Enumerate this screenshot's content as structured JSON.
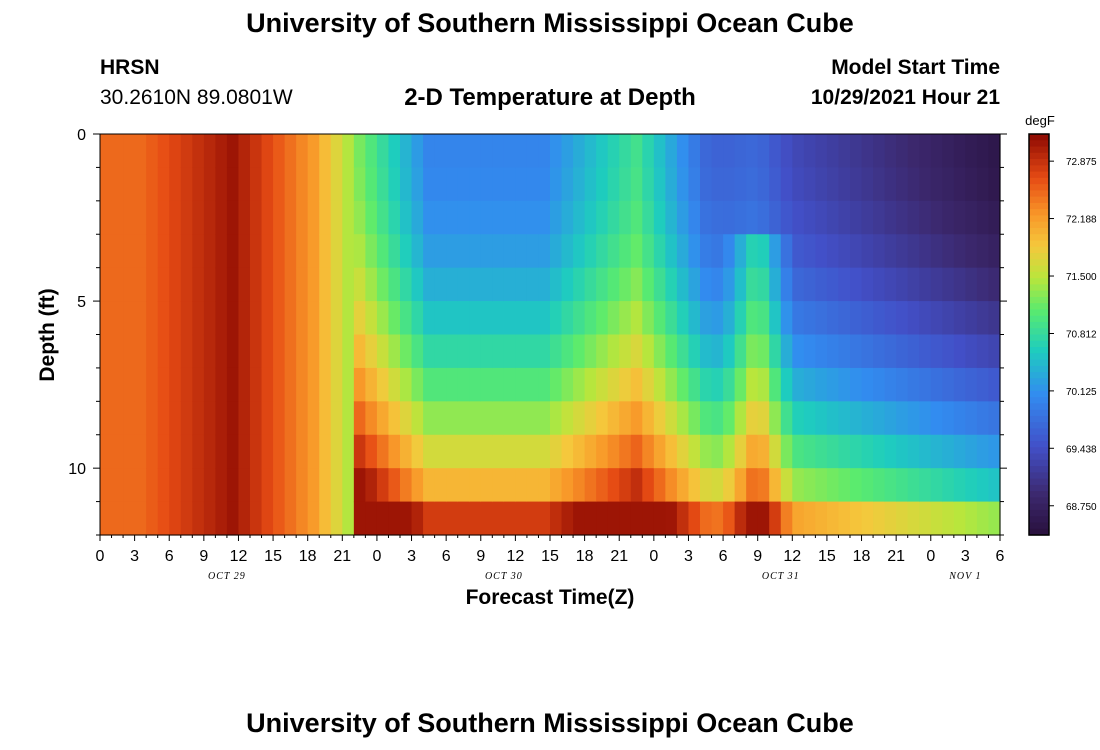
{
  "header": {
    "title": "University of Southern Mississippi Ocean Cube",
    "station": "HRSN",
    "coords": "30.2610N  89.0801W",
    "plot_title": "2-D Temperature at Depth",
    "start_label": "Model Start Time",
    "start_value": "10/29/2021 Hour 21"
  },
  "footer": {
    "title": "University of Southern Mississippi Ocean Cube"
  },
  "chart_data": {
    "type": "heatmap",
    "title": "2-D Temperature at Depth",
    "xlabel": "Forecast Time(Z)",
    "ylabel": "Depth (ft)",
    "x_range_hours": [
      0,
      78
    ],
    "y_range_ft": [
      0,
      12
    ],
    "y_ticks": [
      0,
      5,
      10
    ],
    "x_tick_labels": [
      "0",
      "3",
      "6",
      "9",
      "12",
      "15",
      "18",
      "21",
      "0",
      "3",
      "6",
      "9",
      "12",
      "15",
      "18",
      "21",
      "0",
      "3",
      "6",
      "9",
      "12",
      "15",
      "18",
      "21",
      "0",
      "3",
      "6"
    ],
    "date_labels": [
      {
        "label": "OCT 29",
        "hour": 11
      },
      {
        "label": "OCT 30",
        "hour": 35
      },
      {
        "label": "OCT 31",
        "hour": 59
      },
      {
        "label": "NOV 1",
        "hour": 75
      }
    ],
    "depth_layers_ft": [
      0.5,
      1.5,
      2.5,
      3.5,
      4.5,
      5.5,
      6.5,
      7.5,
      8.5,
      9.5,
      10.5,
      11.5
    ],
    "colorbar": {
      "unit": "degF",
      "min": 68.4,
      "max": 73.2,
      "tick_labels": [
        "72.875",
        "72.188",
        "71.500",
        "70.812",
        "70.125",
        "69.438",
        "68.750"
      ]
    }
  }
}
